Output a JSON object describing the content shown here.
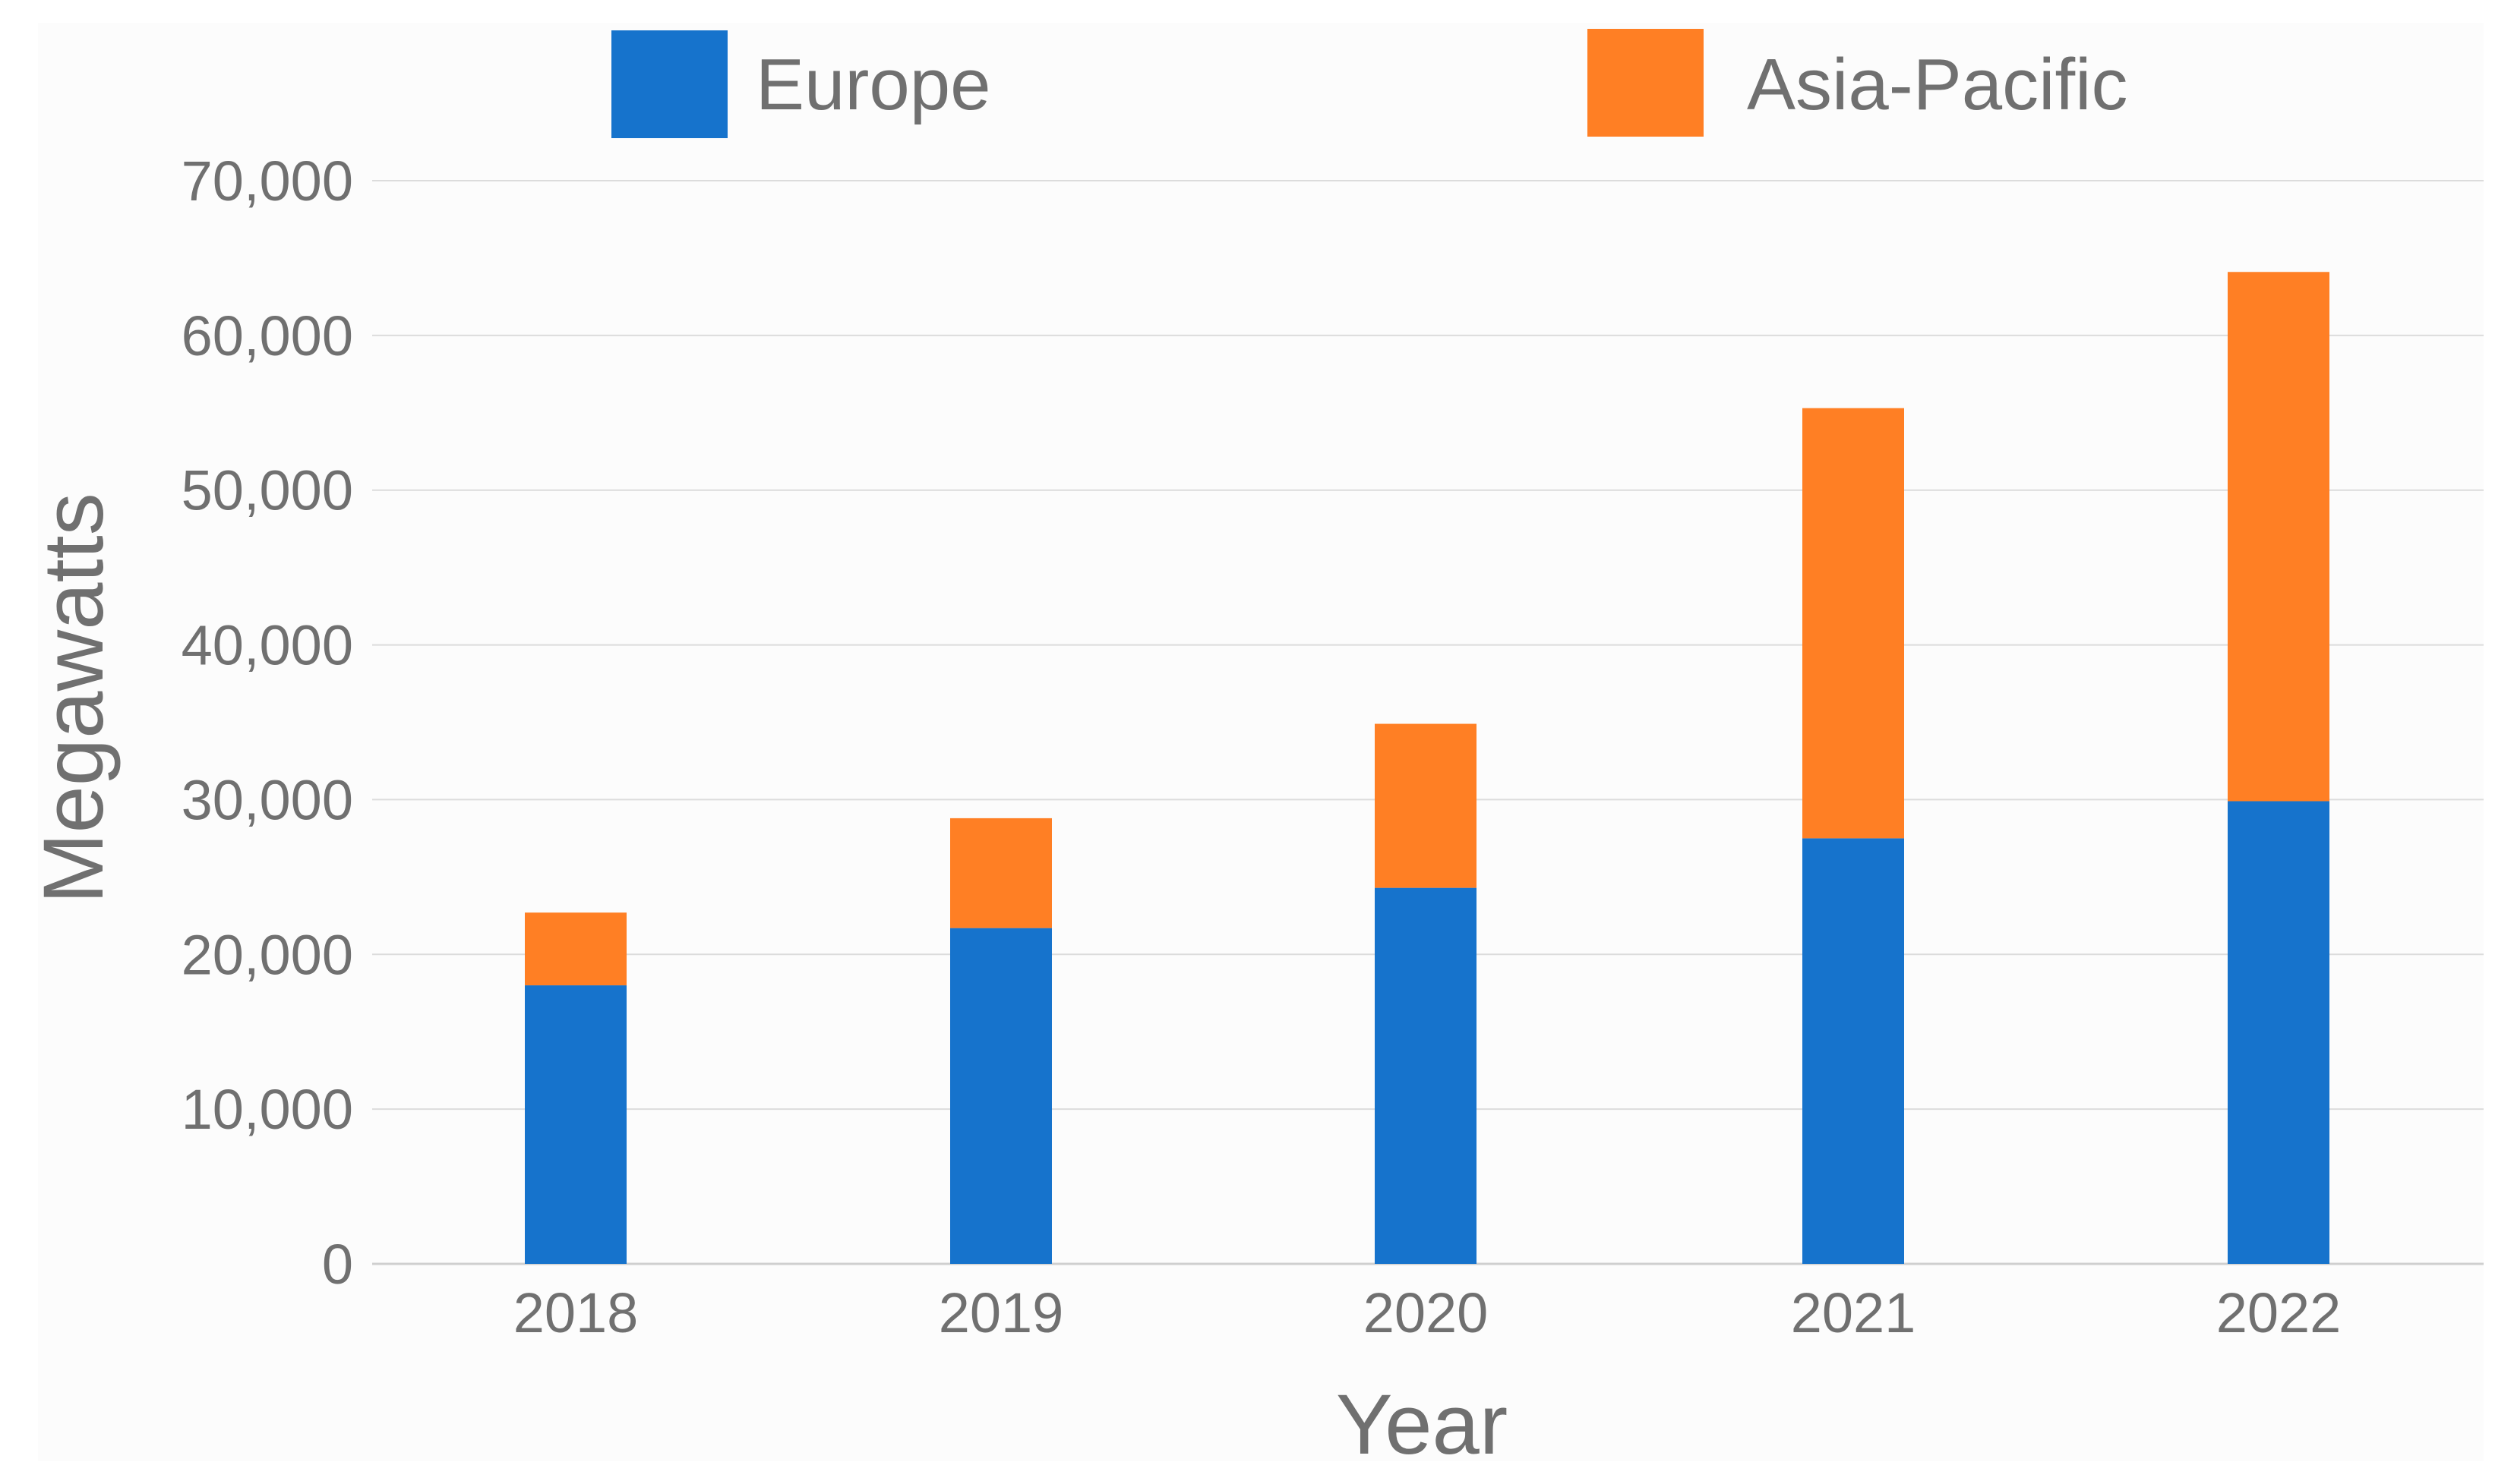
{
  "colors": {
    "background": "#ffffff",
    "plot_background": "#fcfcfc",
    "text": "#707070",
    "grid": "#dcdcdc"
  },
  "chart_data": {
    "type": "bar",
    "stacked": true,
    "categories": [
      "2018",
      "2019",
      "2020",
      "2021",
      "2022"
    ],
    "series": [
      {
        "name": "Europe",
        "color": "#1673cc",
        "values": [
          18000,
          21700,
          24300,
          27500,
          29900
        ]
      },
      {
        "name": "Asia-Pacific",
        "color": "#ff7f24",
        "values": [
          4700,
          7100,
          10600,
          27800,
          34200
        ]
      }
    ],
    "xlabel": "Year",
    "ylabel": "Megawatts",
    "ylim": [
      0,
      70000
    ],
    "yticks": [
      0,
      10000,
      20000,
      30000,
      40000,
      50000,
      60000,
      70000
    ],
    "ytick_labels": [
      "0",
      "10,000",
      "20,000",
      "30,000",
      "40,000",
      "50,000",
      "60,000",
      "70,000"
    ],
    "grid": true,
    "legend_position": "top"
  }
}
